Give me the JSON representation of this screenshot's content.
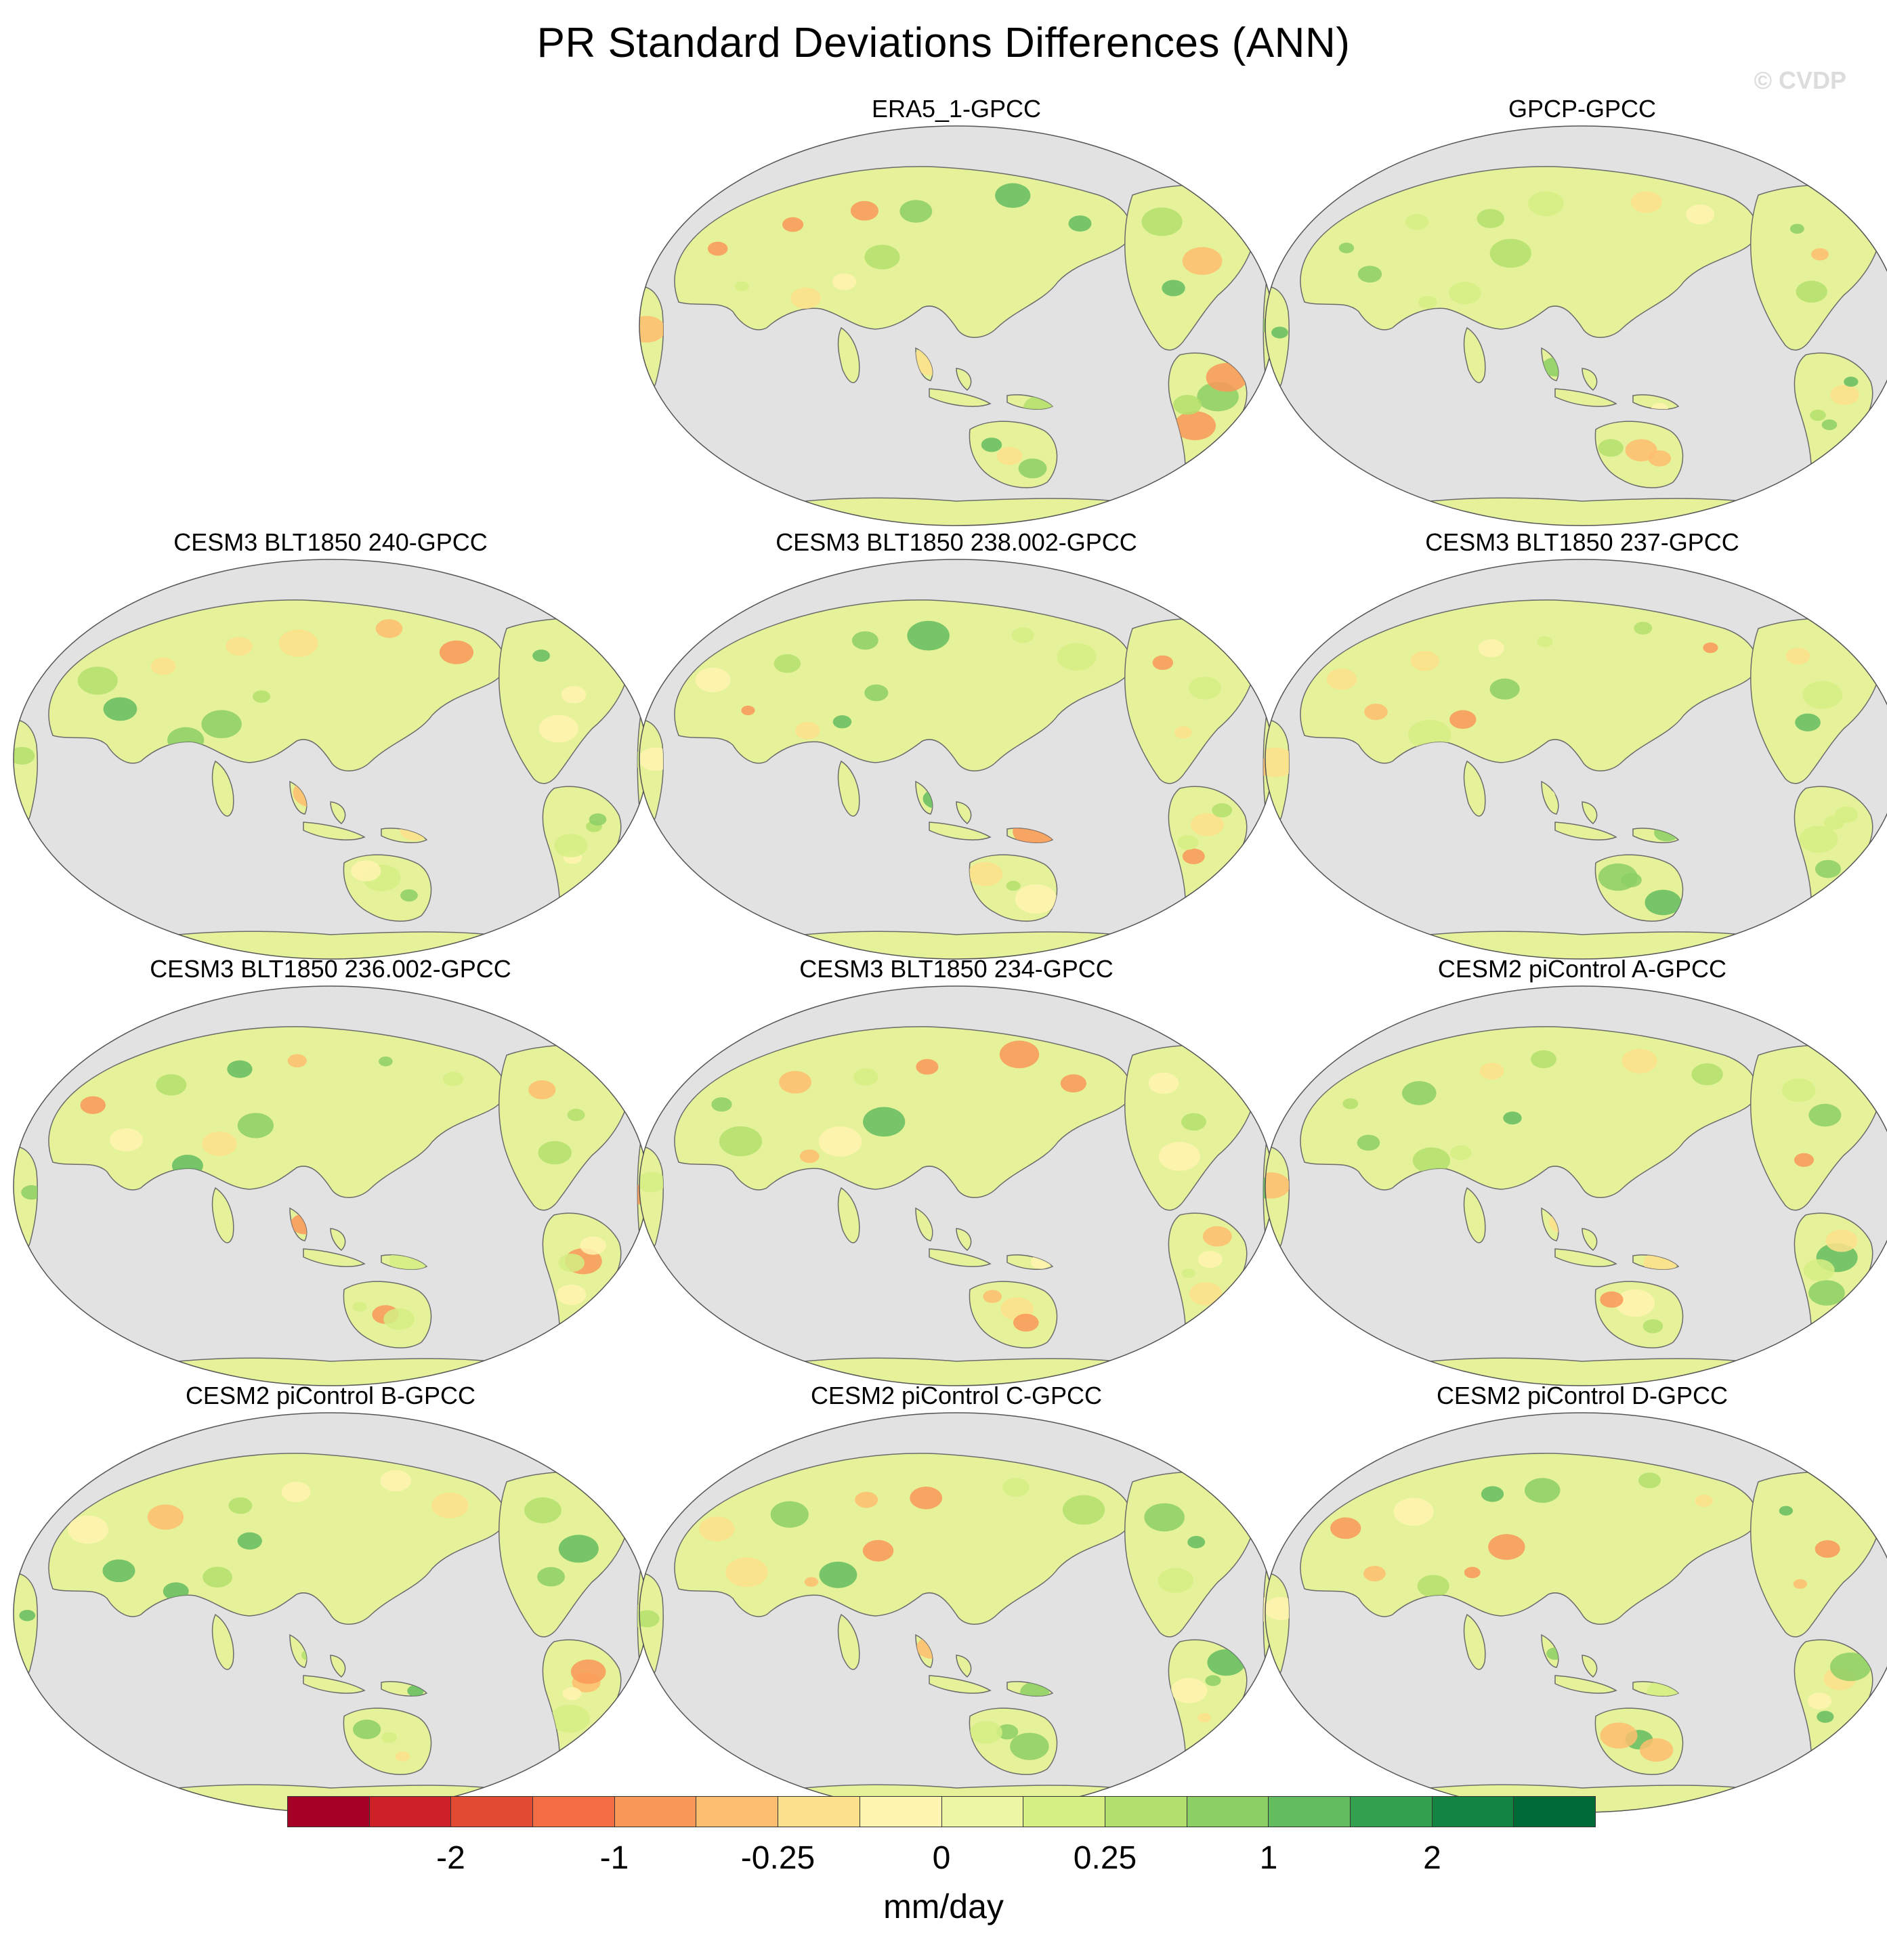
{
  "title": "PR Standard Deviations Differences (ANN)",
  "watermark": "© CVDP",
  "colors": {
    "ocean": "#e2e2e2",
    "land_base": "#e6f29a",
    "coast": "#6b6b6b"
  },
  "panels": [
    {
      "title": "ERA5_1-GPCC"
    },
    {
      "title": "GPCP-GPCC"
    },
    {
      "title": "CESM3 BLT1850 240-GPCC"
    },
    {
      "title": "CESM3 BLT1850 238.002-GPCC"
    },
    {
      "title": "CESM3 BLT1850 237-GPCC"
    },
    {
      "title": "CESM3 BLT1850 236.002-GPCC"
    },
    {
      "title": "CESM3 BLT1850 234-GPCC"
    },
    {
      "title": "CESM2 piControl A-GPCC"
    },
    {
      "title": "CESM2 piControl B-GPCC"
    },
    {
      "title": "CESM2 piControl C-GPCC"
    },
    {
      "title": "CESM2 piControl D-GPCC"
    }
  ],
  "colorbar": {
    "colors": [
      "#a50026",
      "#cc2127",
      "#e34a33",
      "#f26d43",
      "#f99858",
      "#fdbe6f",
      "#fde08b",
      "#fff5b0",
      "#ecf6a4",
      "#d5ef84",
      "#b2e06d",
      "#8ccf65",
      "#63bd5f",
      "#34a150",
      "#148442",
      "#006b37"
    ],
    "labels": [
      "-2",
      "-1",
      "-0.25",
      "0",
      "0.25",
      "1",
      "2"
    ],
    "units": "mm/day"
  }
}
